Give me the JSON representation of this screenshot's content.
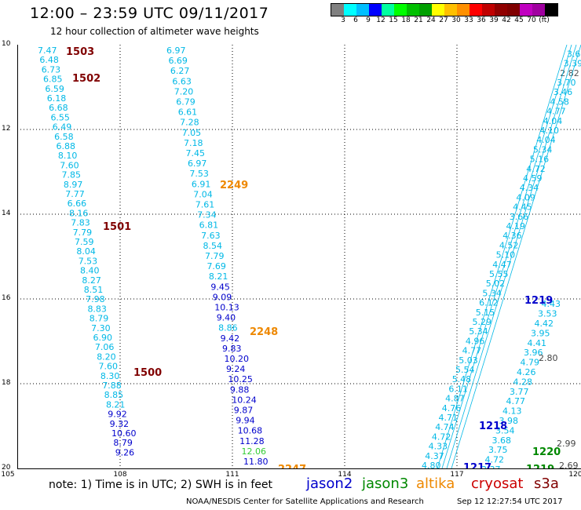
{
  "header": {
    "title": "12:00 – 23:59 UTC 09/11/2017",
    "subtitle": "12 hour collection of altimeter wave heights"
  },
  "legend": {
    "colors": [
      "#808080",
      "#00ffff",
      "#00bfff",
      "#0000ff",
      "#00ffa0",
      "#00ff00",
      "#00c000",
      "#00a000",
      "#ffff00",
      "#ffc000",
      "#ff9000",
      "#ff0000",
      "#c00000",
      "#900000",
      "#800000",
      "#c000c0",
      "#a000a0",
      "#000000"
    ],
    "labels": [
      "3",
      "6",
      "9",
      "12",
      "15",
      "18",
      "21",
      "24",
      "27",
      "30",
      "33",
      "36",
      "39",
      "42",
      "45",
      "70",
      "(ft)"
    ],
    "units": "(ft)"
  },
  "axes": {
    "yticks": [
      "10",
      "12",
      "14",
      "16",
      "18",
      "20"
    ],
    "xticks": [
      "105",
      "108",
      "111",
      "114",
      "117",
      "120"
    ]
  },
  "satellites": {
    "jason2": "jason2",
    "jason3": "jason3",
    "altika": "altika",
    "cryosat": "cryosat",
    "s3a": "s3a"
  },
  "colors": {
    "jason2": "#0000cc",
    "jason3": "#008800",
    "altika": "#ee8800",
    "cryosat": "#cc0000",
    "s3a": "#800000",
    "cyan_text": "#00b8e6",
    "blue_text": "#0000cc",
    "green_text": "#33cc33"
  },
  "note": "note:  1) Time is in UTC;  2) SWH is in feet",
  "credit": "NOAA/NESDIS Center for Satellite Applications and Research",
  "credit_time": "Sep 12 12:27:54 UTC 2017",
  "tracks": {
    "s3a_labels": [
      "1503",
      "1502",
      "1501",
      "1500"
    ],
    "altika_labels": [
      "2249",
      "2248",
      "2247"
    ],
    "jason2_labels": [
      "1219",
      "1218",
      "1217"
    ],
    "jason3_labels": [
      "1220",
      "1219"
    ],
    "left_track_values": [
      "7.47",
      "6.48",
      "6.73",
      "6.85",
      "6.59",
      "6.18",
      "6.68",
      "6.55",
      "6.49",
      "6.58",
      "6.88",
      "8.10",
      "7.60",
      "7.85",
      "8.97",
      "7.77",
      "6.66",
      "8.16",
      "7.83",
      "7.79",
      "7.59",
      "8.04",
      "7.53",
      "8.40",
      "8.27",
      "8.51",
      "7.98",
      "8.83",
      "8.79",
      "7.30",
      "6.90",
      "7.06",
      "8.20",
      "7.60",
      "8.30",
      "7.88",
      "8.85",
      "8.21",
      "9.92",
      "9.32",
      "10.60",
      "8.79",
      "9.26"
    ],
    "mid_track_values": [
      "6.97",
      "6.69",
      "6.27",
      "6.63",
      "7.20",
      "6.79",
      "6.61",
      "7.28",
      "7.05",
      "7.18",
      "7.45",
      "6.97",
      "7.53",
      "6.91",
      "7.04",
      "7.61",
      "7.34",
      "6.81",
      "7.63",
      "8.54",
      "7.79",
      "7.69",
      "8.21",
      "9.45",
      "9.09",
      "10.13",
      "9.40",
      "8.86",
      "9.42",
      "9.83",
      "10.20",
      "9.24",
      "10.25",
      "9.88",
      "10.24",
      "9.87",
      "9.94",
      "10.68",
      "11.28",
      "12.06",
      "11.80"
    ],
    "right_track_a_values": [
      "4.80",
      "4.37",
      "4.33",
      "4.72",
      "4.74",
      "4.71",
      "4.76",
      "4.87",
      "6.11",
      "5.48",
      "5.54",
      "5.03",
      "4.77",
      "4.96",
      "5.34",
      "5.29",
      "5.15",
      "6.12",
      "5.34",
      "5.02",
      "5.55",
      "4.47",
      "5.10",
      "4.52",
      "4.36",
      "4.19",
      "3.66",
      "4.45",
      "4.09",
      "4.34",
      "4.59",
      "4.72",
      "5.16",
      "5.34",
      "4.04",
      "4.10",
      "4.04",
      "4.77",
      "4.58",
      "3.46",
      "3.70",
      "2.82",
      "3.39",
      "3.65"
    ],
    "right_track_b_values": [
      "3.37",
      "4.72",
      "3.75",
      "3.68",
      "3.54",
      "3.98",
      "4.13",
      "4.77",
      "3.77",
      "4.28",
      "4.26",
      "4.79",
      "3.96",
      "4.41",
      "3.95",
      "4.42",
      "3.53",
      "4.43"
    ]
  }
}
